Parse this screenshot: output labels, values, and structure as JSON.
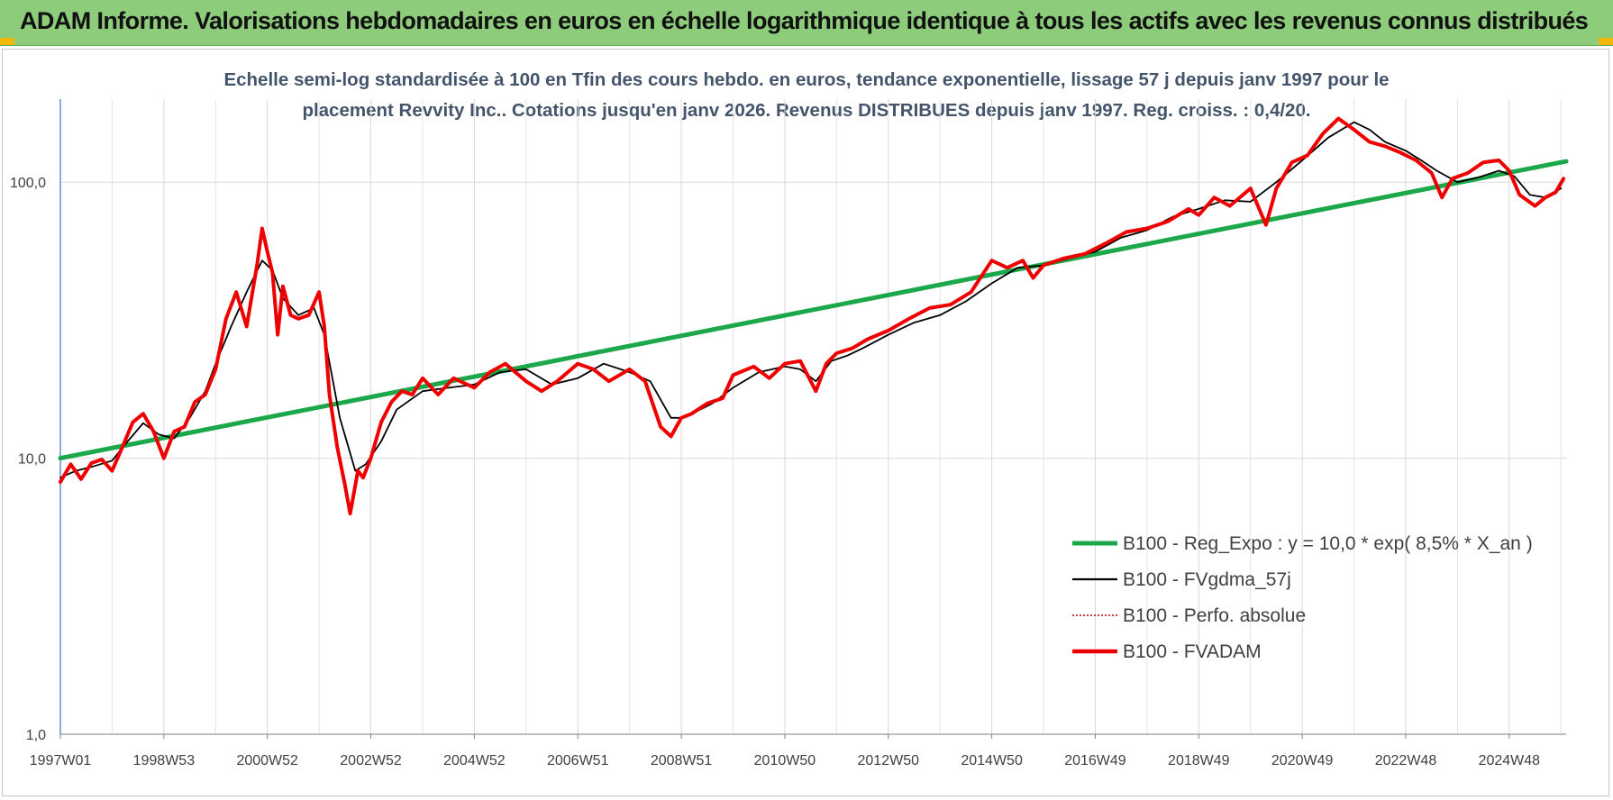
{
  "banner": {
    "title": "ADAM Informe. Valorisations hebdomadaires en euros en échelle logarithmique identique à tous les actifs avec les revenus connus distribués",
    "color": "#8dcc7a"
  },
  "chart_data": {
    "type": "line",
    "title": "Echelle semi-log standardisée à 100 en Tfin des cours hebdo. en euros, tendance exponentielle, lissage 57 j depuis janv 1997 pour le placement Revvity Inc.. Cotations jusqu'en janv 2026. Revenus DISTRIBUES depuis janv 1997. Reg. croiss. : 0,4/20.",
    "y_scale": "log",
    "ylim": [
      1,
      200
    ],
    "xlim": [
      1997.0,
      2026.1
    ],
    "y_ticks": [
      {
        "value": 1,
        "label": "1,0"
      },
      {
        "value": 10,
        "label": "10,0"
      },
      {
        "value": 100,
        "label": "100,0"
      }
    ],
    "x_ticks": [
      {
        "value": 1997.0,
        "label": "1997W01"
      },
      {
        "value": 1999.0,
        "label": "1998W53"
      },
      {
        "value": 2001.0,
        "label": "2000W52"
      },
      {
        "value": 2003.0,
        "label": "2002W52"
      },
      {
        "value": 2005.0,
        "label": "2004W52"
      },
      {
        "value": 2007.0,
        "label": "2006W51"
      },
      {
        "value": 2009.0,
        "label": "2008W51"
      },
      {
        "value": 2011.0,
        "label": "2010W50"
      },
      {
        "value": 2013.0,
        "label": "2012W50"
      },
      {
        "value": 2015.0,
        "label": "2014W50"
      },
      {
        "value": 2017.0,
        "label": "2016W49"
      },
      {
        "value": 2019.0,
        "label": "2018W49"
      },
      {
        "value": 2021.0,
        "label": "2020W49"
      },
      {
        "value": 2023.0,
        "label": "2022W48"
      },
      {
        "value": 2025.0,
        "label": "2024W48"
      }
    ],
    "grid": "vertical and horizontal",
    "legend_position": "bottom-right",
    "series": [
      {
        "name": "B100 - Reg_Expo : y = 10,0 * exp( 8,5% *  X_an )",
        "color": "#1ca84a",
        "style": "thick",
        "x": [
          1997.0,
          2026.1
        ],
        "values": [
          10.0,
          119.0
        ]
      },
      {
        "name": "B100 - FVgdma_57j",
        "color": "#000000",
        "style": "thin",
        "x": [
          1997.0,
          1997.3,
          1997.6,
          1998.0,
          1998.3,
          1998.6,
          1998.9,
          1999.2,
          1999.5,
          1999.8,
          2000.0,
          2000.3,
          2000.6,
          2000.9,
          2001.1,
          2001.3,
          2001.6,
          2001.9,
          2002.1,
          2002.4,
          2002.7,
          2002.9,
          2003.2,
          2003.5,
          2004.0,
          2004.5,
          2005.0,
          2005.5,
          2006.0,
          2006.5,
          2007.0,
          2007.5,
          2008.0,
          2008.4,
          2008.8,
          2009.0,
          2009.3,
          2009.6,
          2010.0,
          2010.5,
          2011.0,
          2011.3,
          2011.6,
          2011.9,
          2012.2,
          2012.5,
          2013.0,
          2013.5,
          2014.0,
          2014.5,
          2015.0,
          2015.5,
          2016.0,
          2016.5,
          2017.0,
          2017.5,
          2018.0,
          2018.5,
          2019.0,
          2019.5,
          2020.0,
          2020.5,
          2021.0,
          2021.5,
          2022.0,
          2022.3,
          2022.6,
          2023.0,
          2023.3,
          2023.6,
          2024.0,
          2024.4,
          2024.8,
          2025.1,
          2025.4,
          2025.7,
          2026.0
        ],
        "values": [
          8.5,
          9.0,
          9.3,
          9.8,
          11.5,
          13.4,
          12.2,
          11.8,
          14.0,
          17.5,
          22.0,
          30.0,
          40.0,
          52.0,
          48.0,
          38.0,
          33.0,
          35.0,
          28.0,
          14.0,
          9.0,
          9.5,
          11.5,
          15.0,
          17.5,
          18.0,
          18.5,
          20.5,
          21.0,
          18.5,
          19.5,
          22.0,
          20.5,
          19.0,
          14.0,
          14.0,
          14.8,
          15.8,
          18.0,
          20.5,
          21.5,
          21.0,
          19.0,
          22.5,
          23.5,
          25.0,
          28.0,
          31.0,
          33.0,
          37.0,
          43.0,
          49.0,
          50.0,
          53.0,
          56.0,
          63.0,
          67.0,
          75.0,
          80.0,
          86.0,
          85.0,
          100.0,
          120.0,
          145.0,
          165.0,
          155.0,
          140.0,
          130.0,
          120.0,
          110.0,
          100.0,
          104.0,
          110.0,
          105.0,
          90.0,
          88.0,
          95.0
        ]
      },
      {
        "name": "B100 - Perfo. absolue",
        "color": "#c00000",
        "style": "dotted"
      },
      {
        "name": "B100 - FVADAM",
        "color": "#ee0000",
        "style": "thick",
        "x": [
          1997.0,
          1997.2,
          1997.4,
          1997.6,
          1997.8,
          1998.0,
          1998.2,
          1998.4,
          1998.6,
          1998.8,
          1999.0,
          1999.2,
          1999.4,
          1999.6,
          1999.8,
          2000.0,
          2000.2,
          2000.4,
          2000.6,
          2000.8,
          2000.9,
          2001.0,
          2001.1,
          2001.2,
          2001.3,
          2001.45,
          2001.6,
          2001.8,
          2002.0,
          2002.1,
          2002.2,
          2002.35,
          2002.5,
          2002.6,
          2002.75,
          2002.85,
          2003.0,
          2003.2,
          2003.4,
          2003.6,
          2003.8,
          2004.0,
          2004.3,
          2004.6,
          2005.0,
          2005.3,
          2005.6,
          2006.0,
          2006.3,
          2006.6,
          2007.0,
          2007.3,
          2007.6,
          2008.0,
          2008.3,
          2008.6,
          2008.8,
          2009.0,
          2009.2,
          2009.5,
          2009.8,
          2010.0,
          2010.4,
          2010.7,
          2011.0,
          2011.3,
          2011.6,
          2011.8,
          2012.0,
          2012.3,
          2012.6,
          2013.0,
          2013.4,
          2013.8,
          2014.2,
          2014.6,
          2015.0,
          2015.3,
          2015.6,
          2015.8,
          2016.0,
          2016.4,
          2016.8,
          2017.2,
          2017.6,
          2018.0,
          2018.4,
          2018.8,
          2019.0,
          2019.3,
          2019.6,
          2020.0,
          2020.3,
          2020.5,
          2020.8,
          2021.1,
          2021.4,
          2021.7,
          2022.0,
          2022.3,
          2022.6,
          2022.9,
          2023.2,
          2023.5,
          2023.7,
          2023.9,
          2024.2,
          2024.5,
          2024.8,
          2025.0,
          2025.2,
          2025.5,
          2025.7,
          2025.9,
          2026.05
        ],
        "values": [
          8.2,
          9.5,
          8.4,
          9.6,
          9.9,
          9.0,
          11.0,
          13.5,
          14.5,
          12.5,
          10.0,
          12.5,
          13.0,
          16.0,
          17.0,
          21.0,
          32.0,
          40.0,
          30.0,
          50.0,
          68.0,
          56.0,
          47.0,
          28.0,
          42.0,
          33.0,
          32.0,
          33.0,
          40.0,
          30.0,
          17.0,
          11.0,
          8.0,
          6.3,
          9.0,
          8.5,
          10.0,
          13.5,
          16.0,
          17.5,
          17.0,
          19.5,
          17.0,
          19.5,
          18.0,
          20.5,
          22.0,
          19.0,
          17.5,
          19.0,
          22.0,
          21.0,
          19.0,
          21.0,
          19.0,
          13.0,
          12.0,
          14.0,
          14.5,
          15.8,
          16.5,
          20.0,
          21.5,
          19.5,
          22.0,
          22.5,
          17.5,
          22.0,
          24.0,
          25.0,
          27.0,
          29.0,
          32.0,
          35.0,
          36.0,
          40.0,
          52.0,
          49.0,
          52.0,
          45.0,
          50.0,
          53.0,
          55.0,
          60.0,
          66.0,
          68.0,
          72.0,
          80.0,
          76.0,
          88.0,
          82.0,
          95.0,
          70.0,
          95.0,
          118.0,
          125.0,
          150.0,
          170.0,
          155.0,
          140.0,
          135.0,
          128.0,
          120.0,
          108.0,
          88.0,
          103.0,
          108.0,
          118.0,
          120.0,
          110.0,
          90.0,
          82.0,
          88.0,
          92.0,
          103.0
        ]
      }
    ]
  }
}
